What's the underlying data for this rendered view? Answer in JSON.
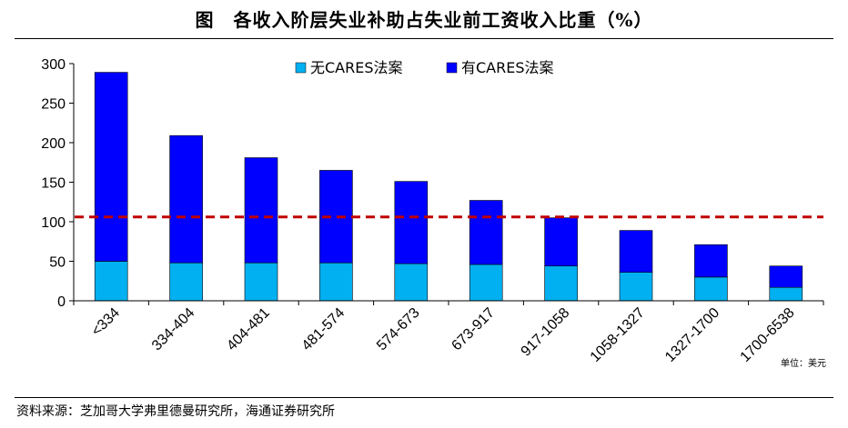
{
  "figure": {
    "title": "图　各收入阶层失业补助占失业前工资收入比重（%）",
    "source": "资料来源：芝加哥大学弗里德曼研究所，海通证券研究所",
    "unit_note": "单位：美元"
  },
  "colors": {
    "without_cares": "#00b0f0",
    "with_cares": "#0000ff",
    "reference_line": "#c00000"
  },
  "chart_data": {
    "type": "bar",
    "stacked": true,
    "categories": [
      "<334",
      "334-404",
      "404-481",
      "481-574",
      "574-673",
      "673-917",
      "917-1058",
      "1058-1327",
      "1327-1700",
      "1700-6538"
    ],
    "series": [
      {
        "name": "无CARES法案",
        "values": [
          50,
          48,
          48,
          48,
          47,
          46,
          44,
          36,
          30,
          17
        ]
      },
      {
        "name": "有CARES法案",
        "values": [
          239,
          161,
          133,
          117,
          104,
          81,
          61,
          53,
          41,
          27
        ]
      }
    ],
    "totals": [
      289,
      209,
      181,
      165,
      151,
      127,
      105,
      89,
      71,
      44
    ],
    "reference_line": {
      "y": 106,
      "style": "dashed"
    },
    "ylim": [
      0,
      300
    ],
    "yticks": [
      "0",
      "50",
      "100",
      "150",
      "200",
      "250",
      "300"
    ],
    "xlabel": "",
    "ylabel": "",
    "grid": false,
    "legend_position": "top-center"
  }
}
